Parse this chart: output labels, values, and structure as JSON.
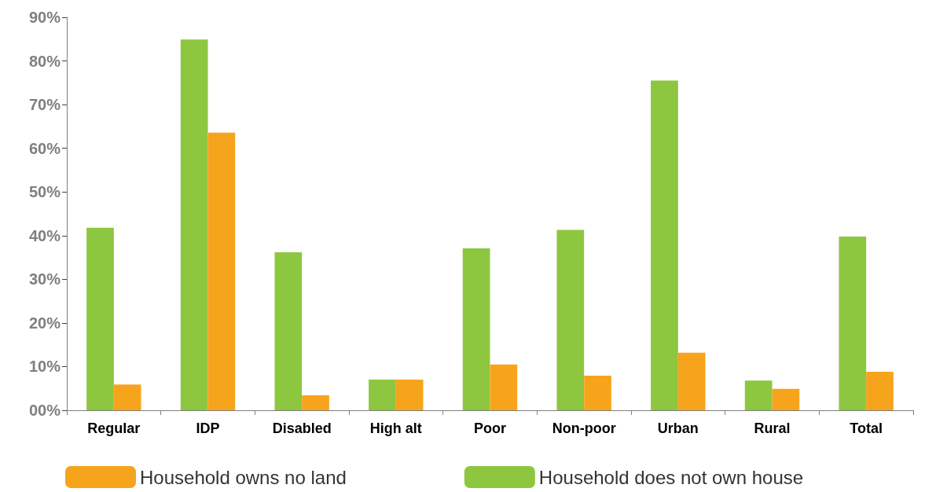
{
  "chart_data": {
    "type": "bar",
    "categories": [
      "Regular",
      "IDP",
      "Disabled",
      "High alt",
      "Poor",
      "Non-poor",
      "Urban",
      "Rural",
      "Total"
    ],
    "series": [
      {
        "name": "Household does not own house",
        "color": "#8dc63f",
        "values": [
          41.8,
          84.9,
          36.2,
          7.0,
          37.1,
          41.3,
          75.5,
          6.8,
          39.8
        ]
      },
      {
        "name": "Household owns no land",
        "color": "#f7a41d",
        "values": [
          5.9,
          63.6,
          3.4,
          7.0,
          10.5,
          7.9,
          13.2,
          4.9,
          8.8
        ]
      }
    ],
    "ylim": [
      0,
      90
    ],
    "yticks": [
      {
        "value": 0,
        "label": "00%"
      },
      {
        "value": 10,
        "label": "10%"
      },
      {
        "value": 20,
        "label": "20%"
      },
      {
        "value": 30,
        "label": "30%"
      },
      {
        "value": 40,
        "label": "40%"
      },
      {
        "value": 50,
        "label": "50%"
      },
      {
        "value": 60,
        "label": "60%"
      },
      {
        "value": 70,
        "label": "70%"
      },
      {
        "value": 80,
        "label": "80%"
      },
      {
        "value": 90,
        "label": "90%"
      }
    ],
    "grid": false,
    "legend": "bottom"
  }
}
